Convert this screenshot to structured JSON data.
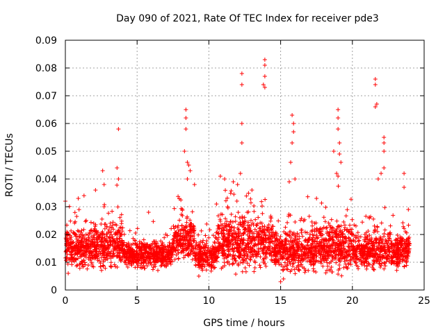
{
  "chart_data": {
    "type": "scatter",
    "title": "Day 090 of 2021, Rate Of TEC Index for receiver pde3",
    "xlabel": "GPS time / hours",
    "ylabel": "ROTI / TECUs",
    "xlim": [
      0,
      25
    ],
    "ylim": [
      0,
      0.09
    ],
    "x_ticks": [
      "0",
      "5",
      "10",
      "15",
      "20",
      "25"
    ],
    "y_ticks": [
      "0",
      "0.01",
      "0.02",
      "0.03",
      "0.04",
      "0.05",
      "0.06",
      "0.07",
      "0.08",
      "0.09"
    ],
    "grid": true,
    "marker": "+",
    "color": "#ff0000",
    "bands": [
      {
        "t0": 0.0,
        "t1": 2.0,
        "base": 0.015,
        "spread": 0.008
      },
      {
        "t0": 2.0,
        "t1": 4.0,
        "base": 0.016,
        "spread": 0.01
      },
      {
        "t0": 4.0,
        "t1": 7.5,
        "base": 0.013,
        "spread": 0.006
      },
      {
        "t0": 7.5,
        "t1": 9.0,
        "base": 0.018,
        "spread": 0.01
      },
      {
        "t0": 9.0,
        "t1": 10.5,
        "base": 0.012,
        "spread": 0.006
      },
      {
        "t0": 10.5,
        "t1": 14.5,
        "base": 0.017,
        "spread": 0.011
      },
      {
        "t0": 14.5,
        "t1": 17.5,
        "base": 0.014,
        "spread": 0.009
      },
      {
        "t0": 17.5,
        "t1": 20.0,
        "base": 0.016,
        "spread": 0.011
      },
      {
        "t0": 20.0,
        "t1": 24.0,
        "base": 0.014,
        "spread": 0.008
      }
    ],
    "spikes": [
      {
        "x": 0.0,
        "y": 0.032
      },
      {
        "x": 0.9,
        "y": 0.033
      },
      {
        "x": 1.3,
        "y": 0.034
      },
      {
        "x": 2.1,
        "y": 0.036
      },
      {
        "x": 2.6,
        "y": 0.043
      },
      {
        "x": 2.7,
        "y": 0.038
      },
      {
        "x": 3.6,
        "y": 0.044
      },
      {
        "x": 3.7,
        "y": 0.058
      },
      {
        "x": 3.7,
        "y": 0.04
      },
      {
        "x": 5.8,
        "y": 0.028
      },
      {
        "x": 8.4,
        "y": 0.065
      },
      {
        "x": 8.4,
        "y": 0.062
      },
      {
        "x": 8.4,
        "y": 0.058
      },
      {
        "x": 8.3,
        "y": 0.05
      },
      {
        "x": 8.5,
        "y": 0.046
      },
      {
        "x": 8.6,
        "y": 0.045
      },
      {
        "x": 8.7,
        "y": 0.043
      },
      {
        "x": 8.5,
        "y": 0.04
      },
      {
        "x": 9.0,
        "y": 0.038
      },
      {
        "x": 10.8,
        "y": 0.041
      },
      {
        "x": 11.1,
        "y": 0.04
      },
      {
        "x": 11.7,
        "y": 0.039
      },
      {
        "x": 12.3,
        "y": 0.078
      },
      {
        "x": 12.3,
        "y": 0.074
      },
      {
        "x": 12.3,
        "y": 0.06
      },
      {
        "x": 12.3,
        "y": 0.053
      },
      {
        "x": 12.2,
        "y": 0.042
      },
      {
        "x": 12.0,
        "y": 0.038
      },
      {
        "x": 13.0,
        "y": 0.036
      },
      {
        "x": 13.9,
        "y": 0.083
      },
      {
        "x": 13.9,
        "y": 0.081
      },
      {
        "x": 13.9,
        "y": 0.077
      },
      {
        "x": 13.8,
        "y": 0.074
      },
      {
        "x": 13.9,
        "y": 0.073
      },
      {
        "x": 15.8,
        "y": 0.063
      },
      {
        "x": 15.9,
        "y": 0.06
      },
      {
        "x": 15.9,
        "y": 0.057
      },
      {
        "x": 15.8,
        "y": 0.053
      },
      {
        "x": 15.7,
        "y": 0.046
      },
      {
        "x": 15.6,
        "y": 0.039
      },
      {
        "x": 16.0,
        "y": 0.04
      },
      {
        "x": 17.5,
        "y": 0.033
      },
      {
        "x": 18.7,
        "y": 0.05
      },
      {
        "x": 19.0,
        "y": 0.065
      },
      {
        "x": 19.0,
        "y": 0.062
      },
      {
        "x": 19.0,
        "y": 0.058
      },
      {
        "x": 19.1,
        "y": 0.053
      },
      {
        "x": 19.1,
        "y": 0.049
      },
      {
        "x": 19.2,
        "y": 0.046
      },
      {
        "x": 18.9,
        "y": 0.042
      },
      {
        "x": 19.0,
        "y": 0.041
      },
      {
        "x": 21.6,
        "y": 0.076
      },
      {
        "x": 21.6,
        "y": 0.074
      },
      {
        "x": 21.6,
        "y": 0.066
      },
      {
        "x": 21.7,
        "y": 0.067
      },
      {
        "x": 22.2,
        "y": 0.055
      },
      {
        "x": 22.2,
        "y": 0.053
      },
      {
        "x": 22.2,
        "y": 0.05
      },
      {
        "x": 22.2,
        "y": 0.044
      },
      {
        "x": 21.8,
        "y": 0.04
      },
      {
        "x": 22.0,
        "y": 0.042
      },
      {
        "x": 23.6,
        "y": 0.042
      },
      {
        "x": 23.6,
        "y": 0.037
      },
      {
        "x": 23.9,
        "y": 0.029
      },
      {
        "x": 15.2,
        "y": 0.004
      },
      {
        "x": 15.0,
        "y": 0.003
      },
      {
        "x": 9.3,
        "y": 0.005
      },
      {
        "x": 0.2,
        "y": 0.006
      }
    ]
  }
}
